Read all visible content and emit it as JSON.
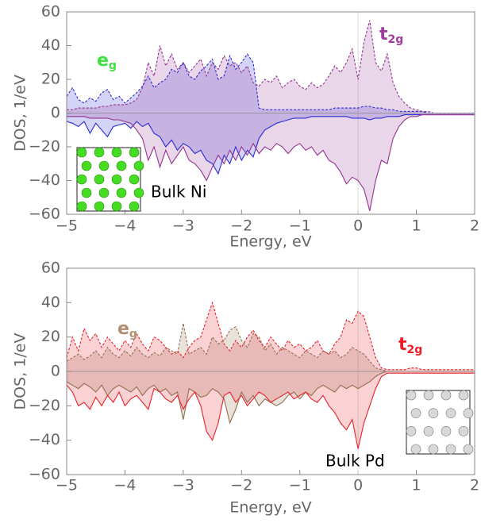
{
  "chart_data": [
    {
      "type": "area",
      "annotation": "Bulk Ni",
      "xlabel": "Energy, eV",
      "ylabel": "DOS, 1/eV",
      "xlim": [
        -5,
        2
      ],
      "ylim": [
        -60,
        60
      ],
      "xticks": [
        {
          "value": -5,
          "label": "−5"
        },
        {
          "value": -4,
          "label": "−4"
        },
        {
          "value": -3,
          "label": "−3"
        },
        {
          "value": -2,
          "label": "−2"
        },
        {
          "value": -1,
          "label": "−1"
        },
        0,
        1,
        2
      ],
      "yticks": [
        {
          "value": -60,
          "label": "−60"
        },
        {
          "value": -40,
          "label": "−40"
        },
        {
          "value": -20,
          "label": "−20"
        },
        0,
        20,
        40,
        60
      ],
      "x": [
        -5,
        -4.9,
        -4.8,
        -4.7,
        -4.6,
        -4.5,
        -4.4,
        -4.3,
        -4.2,
        -4.1,
        -4,
        -3.9,
        -3.8,
        -3.7,
        -3.6,
        -3.5,
        -3.4,
        -3.3,
        -3.2,
        -3.1,
        -3,
        -2.9,
        -2.8,
        -2.7,
        -2.6,
        -2.5,
        -2.4,
        -2.3,
        -2.2,
        -2.1,
        -2,
        -1.9,
        -1.8,
        -1.7,
        -1.6,
        -1.5,
        -1.4,
        -1.3,
        -1.2,
        -1.1,
        -1,
        -0.9,
        -0.8,
        -0.7,
        -0.6,
        -0.5,
        -0.4,
        -0.3,
        -0.2,
        -0.1,
        0,
        0.1,
        0.2,
        0.3,
        0.4,
        0.5,
        0.6,
        0.7,
        0.8,
        0.9,
        1,
        1.1,
        1.2,
        1.3,
        1.4,
        1.5,
        1.6,
        1.7,
        1.8,
        1.9,
        2
      ],
      "series": [
        {
          "name": "e",
          "subscript": "g",
          "color": "#2a2ad8",
          "label_color": "#3ee03e",
          "values_up": [
            10,
            15,
            8,
            6,
            9,
            7,
            12,
            14,
            8,
            10,
            6,
            9,
            12,
            16,
            22,
            15,
            18,
            20,
            26,
            24,
            30,
            22,
            20,
            25,
            28,
            32,
            20,
            22,
            34,
            26,
            30,
            35,
            30,
            3,
            2,
            2,
            2,
            2,
            2,
            2,
            2,
            2,
            2,
            2,
            2,
            2,
            3,
            3,
            3,
            3,
            3,
            4,
            4,
            3,
            3,
            2,
            2,
            1,
            1,
            1,
            1,
            1,
            0,
            0,
            0,
            0,
            0,
            0,
            0,
            0,
            0
          ],
          "values_down": [
            -5,
            -6,
            -8,
            -5,
            -12,
            -6,
            -10,
            -14,
            -8,
            -7,
            -6,
            -9,
            -5,
            -8,
            -6,
            -12,
            -14,
            -20,
            -16,
            -22,
            -18,
            -20,
            -24,
            -22,
            -28,
            -30,
            -36,
            -25,
            -30,
            -20,
            -28,
            -22,
            -26,
            -15,
            -10,
            -8,
            -6,
            -5,
            -4,
            -3,
            -3,
            -3,
            -2,
            -2,
            -2,
            -2,
            -2,
            -2,
            -2,
            -3,
            -3,
            -3,
            -4,
            -3,
            -3,
            -2,
            -2,
            -2,
            -1,
            -1,
            -1,
            -1,
            -1,
            -1,
            -1,
            -1,
            -1,
            -1,
            -1,
            -1,
            -1
          ]
        },
        {
          "name": "t",
          "subscript": "2g",
          "color": "#93328f",
          "label_color": "#a03ca0",
          "values_up": [
            2,
            2,
            3,
            3,
            3,
            3,
            4,
            4,
            5,
            5,
            5,
            6,
            8,
            15,
            30,
            22,
            40,
            28,
            35,
            26,
            30,
            24,
            28,
            32,
            22,
            30,
            26,
            34,
            28,
            30,
            24,
            28,
            18,
            16,
            20,
            18,
            22,
            15,
            18,
            20,
            16,
            14,
            18,
            15,
            17,
            22,
            28,
            24,
            30,
            38,
            20,
            42,
            55,
            30,
            25,
            35,
            18,
            10,
            6,
            3,
            2,
            1,
            1,
            0,
            0,
            0,
            0,
            0,
            0,
            0,
            0
          ],
          "values_down": [
            -2,
            -2,
            -2,
            -2,
            -3,
            -3,
            -3,
            -3,
            -4,
            -4,
            -5,
            -6,
            -10,
            -15,
            -28,
            -20,
            -32,
            -22,
            -30,
            -25,
            -20,
            -28,
            -30,
            -34,
            -40,
            -32,
            -25,
            -30,
            -22,
            -28,
            -20,
            -25,
            -18,
            -24,
            -20,
            -22,
            -18,
            -20,
            -24,
            -20,
            -18,
            -22,
            -20,
            -25,
            -22,
            -28,
            -30,
            -35,
            -42,
            -38,
            -40,
            -45,
            -58,
            -40,
            -28,
            -30,
            -15,
            -8,
            -4,
            -2,
            -2,
            -1,
            -1,
            -1,
            -1,
            -1,
            -1,
            -1,
            -1,
            -1,
            -1
          ]
        }
      ]
    },
    {
      "type": "area",
      "annotation": "Bulk Pd",
      "xlabel": "Energy, eV",
      "ylabel": "DOS, 1/eV",
      "xlim": [
        -5,
        2
      ],
      "ylim": [
        -60,
        60
      ],
      "xticks": [
        {
          "value": -5,
          "label": "−5"
        },
        {
          "value": -4,
          "label": "−4"
        },
        {
          "value": -3,
          "label": "−3"
        },
        {
          "value": -2,
          "label": "−2"
        },
        {
          "value": -1,
          "label": "−1"
        },
        0,
        1,
        2
      ],
      "yticks": [
        {
          "value": -60,
          "label": "−60"
        },
        {
          "value": -40,
          "label": "−40"
        },
        {
          "value": -20,
          "label": "−20"
        },
        0,
        20,
        40,
        60
      ],
      "x": [
        -5,
        -4.9,
        -4.8,
        -4.7,
        -4.6,
        -4.5,
        -4.4,
        -4.3,
        -4.2,
        -4.1,
        -4,
        -3.9,
        -3.8,
        -3.7,
        -3.6,
        -3.5,
        -3.4,
        -3.3,
        -3.2,
        -3.1,
        -3,
        -2.9,
        -2.8,
        -2.7,
        -2.6,
        -2.5,
        -2.4,
        -2.3,
        -2.2,
        -2.1,
        -2,
        -1.9,
        -1.8,
        -1.7,
        -1.6,
        -1.5,
        -1.4,
        -1.3,
        -1.2,
        -1.1,
        -1,
        -0.9,
        -0.8,
        -0.7,
        -0.6,
        -0.5,
        -0.4,
        -0.3,
        -0.2,
        -0.1,
        0,
        0.1,
        0.2,
        0.3,
        0.4,
        0.5,
        0.6,
        0.7,
        0.8,
        0.9,
        1,
        1.1,
        1.2,
        1.3,
        1.4,
        1.5,
        1.6,
        1.7,
        1.8,
        1.9,
        2
      ],
      "series": [
        {
          "name": "e",
          "subscript": "g",
          "color": "#8f6e4c",
          "label_color": "#b09070",
          "values_up": [
            6,
            8,
            10,
            7,
            9,
            12,
            8,
            14,
            10,
            8,
            12,
            9,
            14,
            10,
            8,
            11,
            9,
            14,
            12,
            10,
            28,
            10,
            12,
            14,
            10,
            20,
            16,
            18,
            24,
            26,
            18,
            14,
            22,
            20,
            12,
            16,
            10,
            14,
            12,
            10,
            8,
            12,
            10,
            8,
            12,
            10,
            12,
            8,
            10,
            14,
            12,
            10,
            6,
            2,
            1,
            0,
            0,
            0,
            0,
            0,
            0,
            0,
            0,
            0,
            0,
            0,
            0,
            0,
            0,
            0,
            0
          ],
          "values_down": [
            -6,
            -8,
            -10,
            -7,
            -9,
            -12,
            -8,
            -14,
            -10,
            -8,
            -10,
            -12,
            -9,
            -14,
            -10,
            -8,
            -12,
            -10,
            -14,
            -12,
            -28,
            -10,
            -12,
            -15,
            -14,
            -10,
            -12,
            -16,
            -30,
            -22,
            -12,
            -18,
            -14,
            -20,
            -16,
            -18,
            -20,
            -18,
            -14,
            -12,
            -16,
            -12,
            -14,
            -10,
            -8,
            -10,
            -12,
            -8,
            -10,
            -8,
            -10,
            -8,
            -6,
            -3,
            -1,
            0,
            0,
            0,
            0,
            0,
            0,
            0,
            0,
            0,
            0,
            0,
            0,
            0,
            0,
            0,
            0
          ]
        },
        {
          "name": "t",
          "subscript": "2g",
          "color": "#e8202a",
          "label_color": "#ee1c24",
          "values_up": [
            8,
            20,
            12,
            25,
            18,
            22,
            14,
            20,
            16,
            12,
            18,
            14,
            22,
            16,
            12,
            20,
            18,
            14,
            10,
            12,
            8,
            14,
            18,
            20,
            30,
            40,
            28,
            16,
            12,
            18,
            14,
            20,
            24,
            18,
            14,
            20,
            16,
            12,
            18,
            14,
            16,
            12,
            14,
            18,
            12,
            10,
            16,
            20,
            30,
            28,
            35,
            32,
            20,
            8,
            2,
            1,
            1,
            1,
            1,
            2,
            2,
            1,
            1,
            1,
            1,
            1,
            1,
            1,
            1,
            1,
            1
          ],
          "values_down": [
            -8,
            -12,
            -20,
            -18,
            -22,
            -15,
            -20,
            -14,
            -18,
            -12,
            -20,
            -16,
            -14,
            -18,
            -22,
            -10,
            -12,
            -16,
            -18,
            -14,
            -22,
            -16,
            -12,
            -20,
            -35,
            -40,
            -30,
            -14,
            -12,
            -18,
            -14,
            -20,
            -16,
            -12,
            -14,
            -18,
            -16,
            -14,
            -12,
            -16,
            -14,
            -12,
            -16,
            -18,
            -14,
            -20,
            -24,
            -30,
            -34,
            -28,
            -45,
            -30,
            -20,
            -10,
            -3,
            -1,
            -1,
            -1,
            -1,
            -1,
            -1,
            -1,
            -1,
            -1,
            -1,
            -1,
            -1,
            -1,
            -1,
            -1,
            -1
          ]
        }
      ]
    }
  ]
}
